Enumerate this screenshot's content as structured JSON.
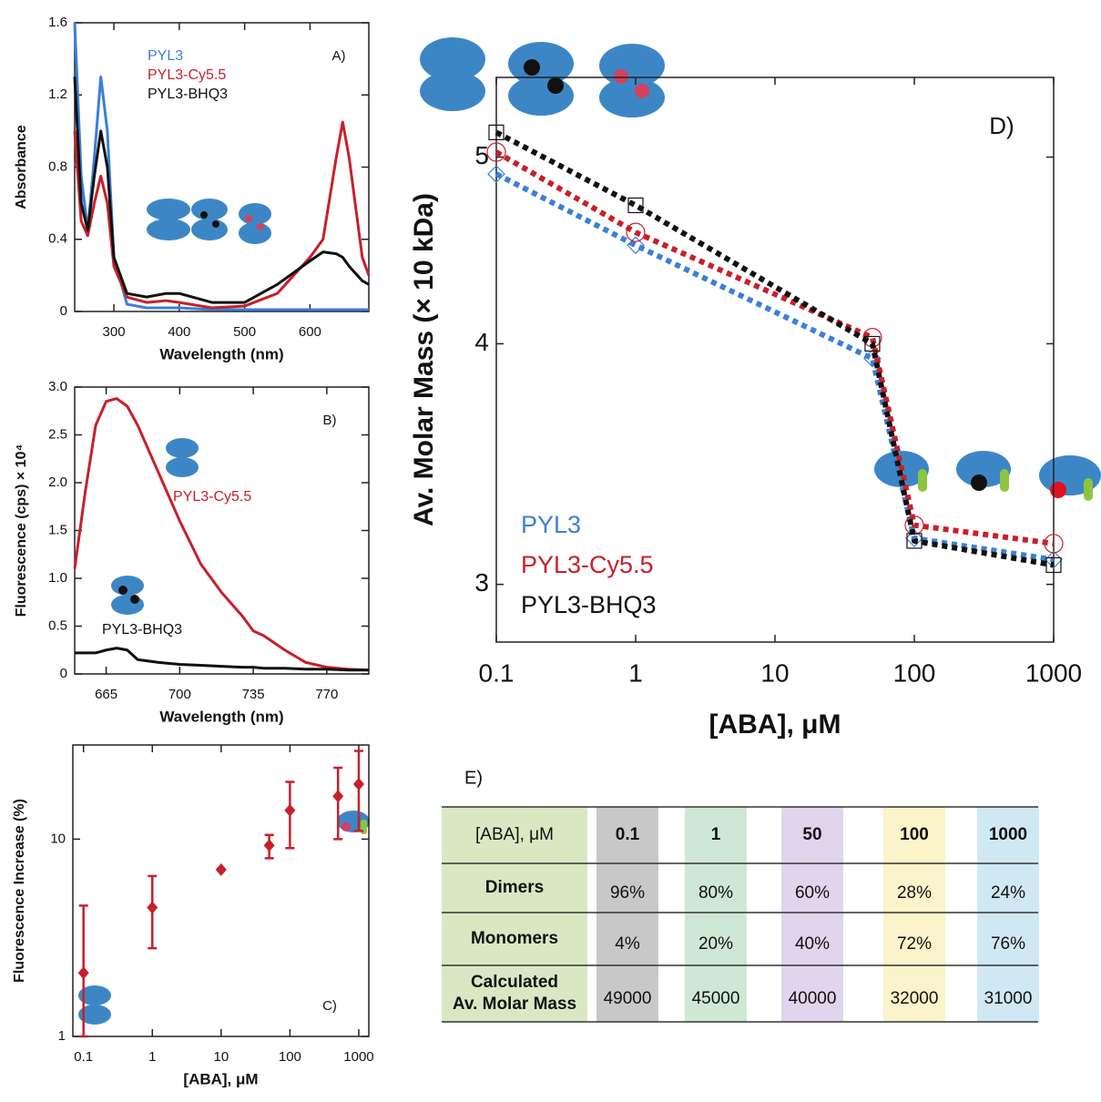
{
  "chart_data": [
    {
      "type": "line",
      "annotation": "A)",
      "x_label": "Wavelength (nm)",
      "y_label": "Absorbance",
      "xlim": [
        240,
        690
      ],
      "xticks": [
        300,
        400,
        500,
        600
      ],
      "ylim": [
        0,
        1.6
      ],
      "yticks": [
        0,
        0.4,
        0.8,
        1.2,
        1.6
      ],
      "legend": true,
      "x": [
        240,
        250,
        260,
        270,
        280,
        290,
        300,
        320,
        350,
        380,
        400,
        450,
        500,
        550,
        600,
        620,
        640,
        650,
        660,
        680,
        690
      ],
      "series": [
        {
          "name": "PYL3",
          "color": "#3b7fd9",
          "values": [
            1.6,
            0.75,
            0.45,
            0.85,
            1.3,
            1.0,
            0.3,
            0.04,
            0.02,
            0.02,
            0.02,
            0.01,
            0.01,
            0.01,
            0.01,
            0.01,
            0.01,
            0.01,
            0.01,
            0.01,
            0.01
          ]
        },
        {
          "name": "PYL3-Cy5.5",
          "color": "#c8202a",
          "values": [
            1.0,
            0.5,
            0.42,
            0.6,
            0.75,
            0.6,
            0.25,
            0.08,
            0.05,
            0.06,
            0.05,
            0.02,
            0.03,
            0.1,
            0.3,
            0.4,
            0.85,
            1.05,
            0.85,
            0.3,
            0.2
          ]
        },
        {
          "name": "PYL3-BHQ3",
          "color": "#111111",
          "values": [
            1.3,
            0.6,
            0.45,
            0.75,
            1.0,
            0.8,
            0.3,
            0.1,
            0.08,
            0.1,
            0.1,
            0.05,
            0.05,
            0.15,
            0.28,
            0.33,
            0.32,
            0.3,
            0.25,
            0.17,
            0.15
          ]
        }
      ]
    },
    {
      "type": "line",
      "annotation": "B)",
      "x_label": "Wavelength (nm)",
      "y_label": "Fluorescence (cps) × 10⁴",
      "xlim": [
        650,
        790
      ],
      "xticks": [
        665,
        700,
        735,
        770
      ],
      "ylim": [
        0,
        3.0
      ],
      "yticks": [
        0,
        0.5,
        {
          "value": 1,
          "label": "1.0"
        },
        1.5,
        {
          "value": 2,
          "label": "2.0"
        },
        2.5,
        {
          "value": 3,
          "label": "3.0"
        }
      ],
      "legend": false,
      "x": [
        650,
        655,
        660,
        665,
        670,
        675,
        680,
        690,
        700,
        710,
        720,
        730,
        735,
        740,
        750,
        760,
        770,
        780,
        790
      ],
      "series": [
        {
          "name": "PYL3-Cy5.5",
          "color": "#c8202a",
          "values": [
            1.1,
            1.9,
            2.6,
            2.85,
            2.88,
            2.8,
            2.6,
            2.1,
            1.6,
            1.15,
            0.85,
            0.6,
            0.45,
            0.4,
            0.25,
            0.12,
            0.07,
            0.05,
            0.04
          ]
        },
        {
          "name": "PYL3-BHQ3",
          "color": "#111111",
          "values": [
            0.22,
            0.22,
            0.22,
            0.25,
            0.27,
            0.25,
            0.15,
            0.12,
            0.1,
            0.09,
            0.08,
            0.07,
            0.07,
            0.06,
            0.06,
            0.05,
            0.05,
            0.04,
            0.04
          ]
        }
      ]
    },
    {
      "type": "scatter",
      "annotation": "C)",
      "x_label": "[ABA], μM",
      "y_label": "Fluorescence Increase (%)",
      "xscale": "log",
      "yscale": "log",
      "xlim": [
        0.07,
        1400
      ],
      "xticks": [
        0.1,
        1,
        10,
        100,
        1000
      ],
      "ylim": [
        1,
        30
      ],
      "yticks": [
        1,
        10
      ],
      "color": "#c8202a",
      "x": [
        0.1,
        1,
        10,
        50,
        100,
        500,
        1000
      ],
      "values": [
        2.1,
        4.5,
        7,
        9.3,
        14,
        16.5,
        19
      ],
      "errors_minus": [
        1.1,
        1.7,
        0,
        1.3,
        5,
        6.5,
        8
      ],
      "errors_plus": [
        2.5,
        2.0,
        0,
        1.2,
        5.5,
        6.5,
        9
      ]
    },
    {
      "type": "line",
      "annotation": "D)",
      "x_label": "[ABA], μM",
      "y_label": "Av. Molar Mass (× 10 kDa)",
      "xscale": "log",
      "yscale": "log",
      "xlim": [
        0.1,
        1000
      ],
      "xticks": [
        0.1,
        1,
        10,
        100,
        1000
      ],
      "ylim": [
        2.8,
        5.5
      ],
      "yticks": [
        3,
        4,
        5
      ],
      "legend": true,
      "line_style": "dotted",
      "x": [
        0.1,
        1,
        50,
        100,
        1000
      ],
      "series": [
        {
          "name": "PYL3",
          "color": "#3b7fd9",
          "marker": "diamond",
          "values": [
            4.9,
            4.5,
            3.93,
            3.17,
            3.09
          ]
        },
        {
          "name": "PYL3-Cy5.5",
          "color": "#c8202a",
          "marker": "circle",
          "values": [
            5.03,
            4.57,
            4.03,
            3.22,
            3.15
          ]
        },
        {
          "name": "PYL3-BHQ3",
          "color": "#111111",
          "marker": "square",
          "values": [
            5.15,
            4.72,
            4.0,
            3.16,
            3.07
          ]
        }
      ]
    }
  ],
  "table": {
    "label": "E)",
    "header": [
      "[ABA], μM",
      "0.1",
      "1",
      "50",
      "100",
      "1000"
    ],
    "rows": [
      [
        "Dimers",
        "96%",
        "80%",
        "60%",
        "28%",
        "24%"
      ],
      [
        "Monomers",
        "4%",
        "20%",
        "40%",
        "72%",
        "76%"
      ],
      [
        "Calculated Av. Molar Mass",
        "49000",
        "45000",
        "40000",
        "32000",
        "31000"
      ]
    ]
  }
}
